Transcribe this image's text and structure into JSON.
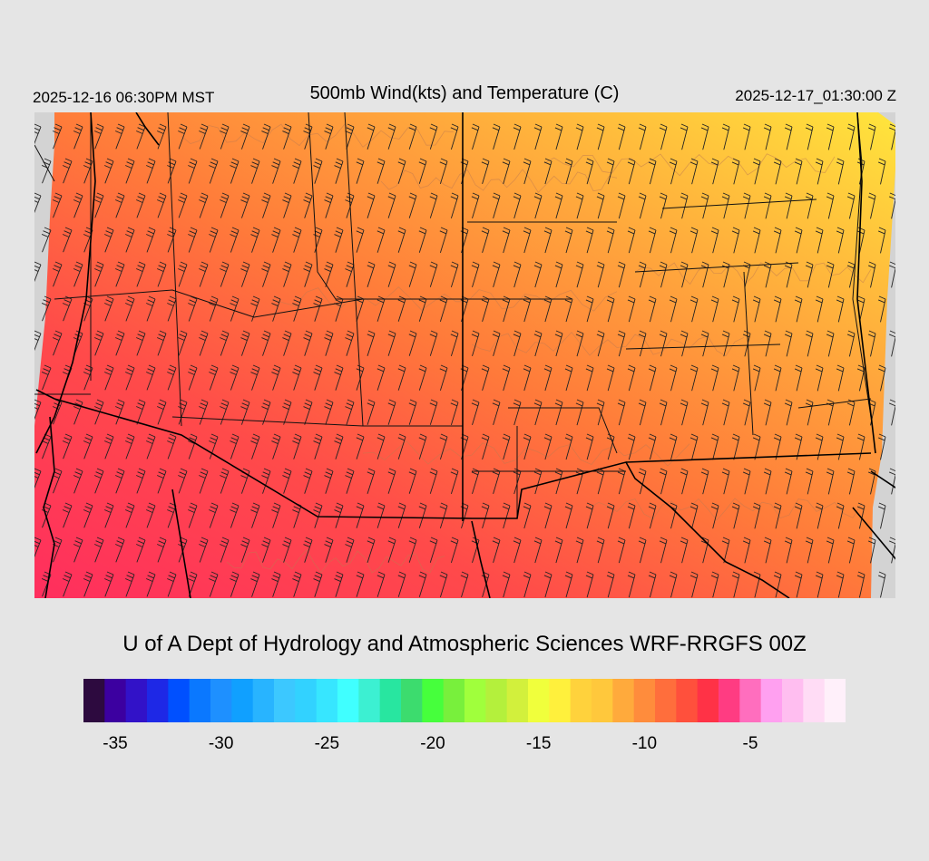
{
  "header": {
    "local_time": "2025-12-16 06:30PM MST",
    "title": "500mb Wind(kts) and Temperature (C)",
    "valid_time": "2025-12-17_01:30:00 Z"
  },
  "credit": "U of A Dept of Hydrology and Atmospheric Sciences WRF-RRGFS 00Z",
  "legend": {
    "colors": [
      "#2d0a3f",
      "#3c00a0",
      "#3212c8",
      "#1e28e6",
      "#0050ff",
      "#0a78ff",
      "#1e90ff",
      "#10a0ff",
      "#28b4ff",
      "#3cc8ff",
      "#32d2ff",
      "#37e6ff",
      "#40ffff",
      "#3cf0d2",
      "#28e6a0",
      "#3cdc6e",
      "#46ff3c",
      "#78f03c",
      "#a0ff3c",
      "#b4f03c",
      "#d2f03c",
      "#f0ff3c",
      "#fff03c",
      "#ffd23c",
      "#ffc83c",
      "#ffaa3c",
      "#ff8c3c",
      "#ff6e3c",
      "#ff503c",
      "#ff3246",
      "#ff3c82",
      "#ff6ebe",
      "#ffa0f0",
      "#ffbef0",
      "#ffdcf5",
      "#fff0fa"
    ],
    "ticks": [
      {
        "label": "-35",
        "value": -35
      },
      {
        "label": "-30",
        "value": -30
      },
      {
        "label": "-25",
        "value": -25
      },
      {
        "label": "-20",
        "value": -20
      },
      {
        "label": "-15",
        "value": -15
      },
      {
        "label": "-10",
        "value": -10
      },
      {
        "label": "-5",
        "value": -5
      }
    ],
    "min": -36,
    "max": -1
  },
  "map": {
    "background": "#d3d3d3",
    "warm_color": "#ff3c64",
    "mid_color": "#ff6a3c",
    "cool_color": "#ffc83c",
    "coldest_color": "#ffe63c"
  }
}
